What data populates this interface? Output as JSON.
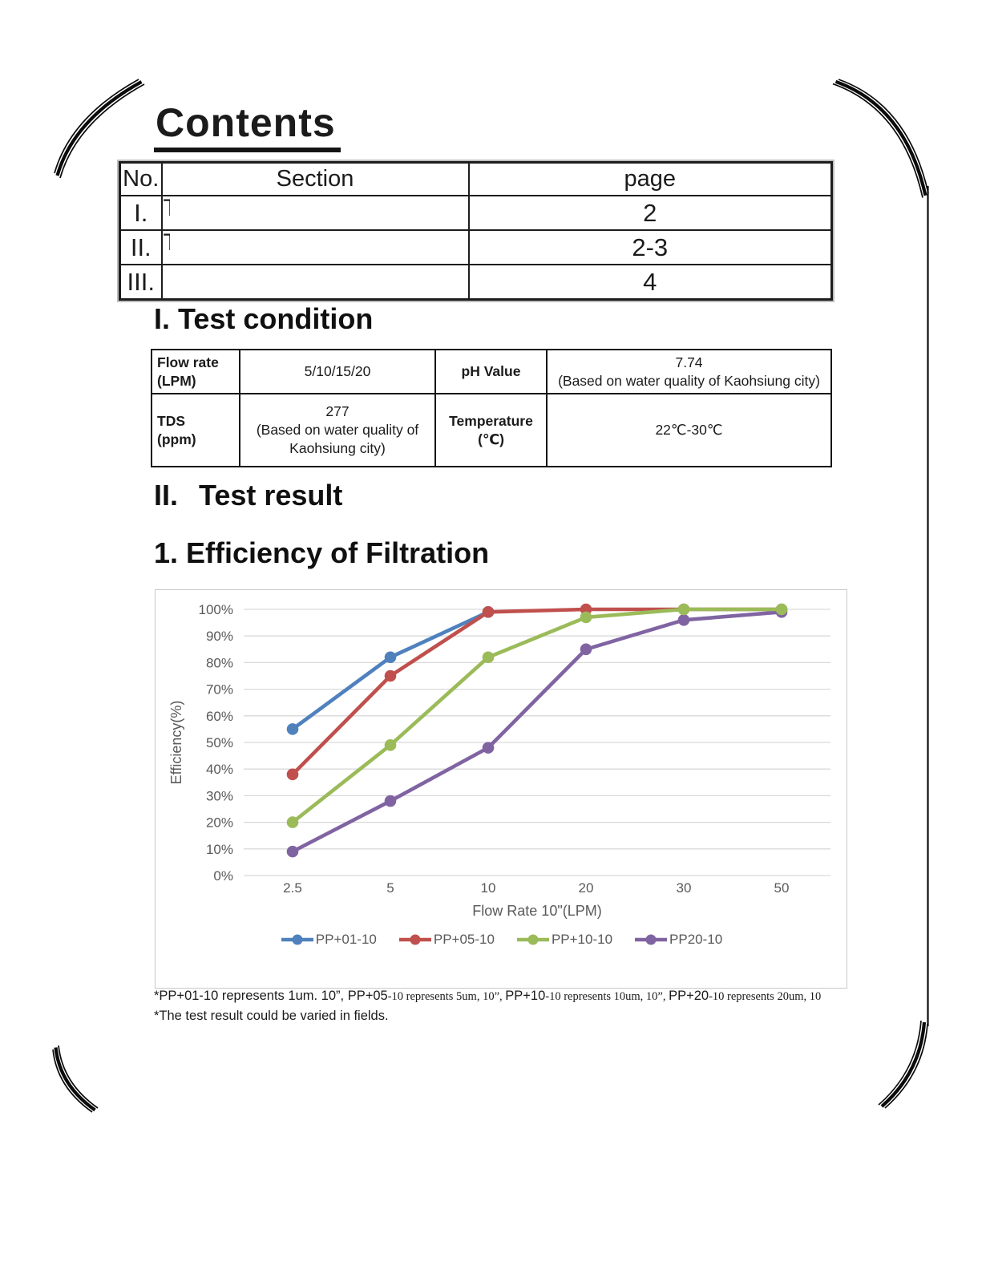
{
  "title": "Contents",
  "contents_table": {
    "columns": [
      "No.",
      "Section",
      "page"
    ],
    "rows": [
      {
        "no": "I.",
        "section_remnant": "T",
        "page": "2"
      },
      {
        "no": "II.",
        "section_remnant": "T",
        "page": "2-3"
      },
      {
        "no": "III.",
        "section_remnant": "",
        "page": "4"
      }
    ]
  },
  "headings": {
    "test_condition": "I. Test condition",
    "test_result_no": "II.",
    "test_result": "Test result",
    "efficiency": "1. Efficiency of Filtration"
  },
  "condition_table": {
    "flow_rate": {
      "label": "Flow rate\n(LPM)",
      "value": "5/10/15/20"
    },
    "ph": {
      "label": "pH Value",
      "value": "7.74\n(Based on water quality of Kaohsiung city)"
    },
    "tds": {
      "label": "TDS\n(ppm)",
      "value": "277\n(Based on water quality of\nKaohsiung city)"
    },
    "temperature": {
      "label": "Temperature\n(℃)",
      "value": "22℃-30℃"
    }
  },
  "chart_data": {
    "type": "line",
    "title": "",
    "xlabel": "Flow Rate 10\"(LPM)",
    "ylabel": "Efficiency(%)",
    "categories": [
      "2.5",
      "5",
      "10",
      "20",
      "30",
      "50"
    ],
    "ylim": [
      0,
      100
    ],
    "ytick_step": 10,
    "ytick_suffix": "%",
    "grid": "horizontal",
    "grid_color": "#d9d9d9",
    "axis_text_color": "#595959",
    "legend_position": "bottom",
    "draw_order": [
      0,
      1,
      3,
      2
    ],
    "series": [
      {
        "name": "PP+01-10",
        "color": "#4F81BD",
        "values": [
          55,
          82,
          99,
          null,
          null,
          null
        ]
      },
      {
        "name": "PP+05-10",
        "color": "#C0504D",
        "values": [
          38,
          75,
          99,
          100,
          100,
          100
        ]
      },
      {
        "name": "PP+10-10",
        "color": "#9BBB59",
        "values": [
          20,
          49,
          82,
          97,
          100,
          100
        ]
      },
      {
        "name": "PP20-10",
        "color": "#8064A2",
        "values": [
          9,
          28,
          48,
          85,
          96,
          99
        ]
      }
    ]
  },
  "footnotes": {
    "line1_segments": [
      {
        "text": "*PP+01-10 represents 1um. 10”, ",
        "font": "sans"
      },
      {
        "text": "PP+05",
        "font": "sans"
      },
      {
        "text": "-10 represents 5um, 10”, ",
        "font": "serif"
      },
      {
        "text": "PP+10",
        "font": "sans"
      },
      {
        "text": "-10 represents 10um, 10”, ",
        "font": "serif"
      },
      {
        "text": "PP+20",
        "font": "sans"
      },
      {
        "text": "-10 represents 20um, 10",
        "font": "serif"
      }
    ],
    "line2": "*The test result could be varied in fields."
  }
}
